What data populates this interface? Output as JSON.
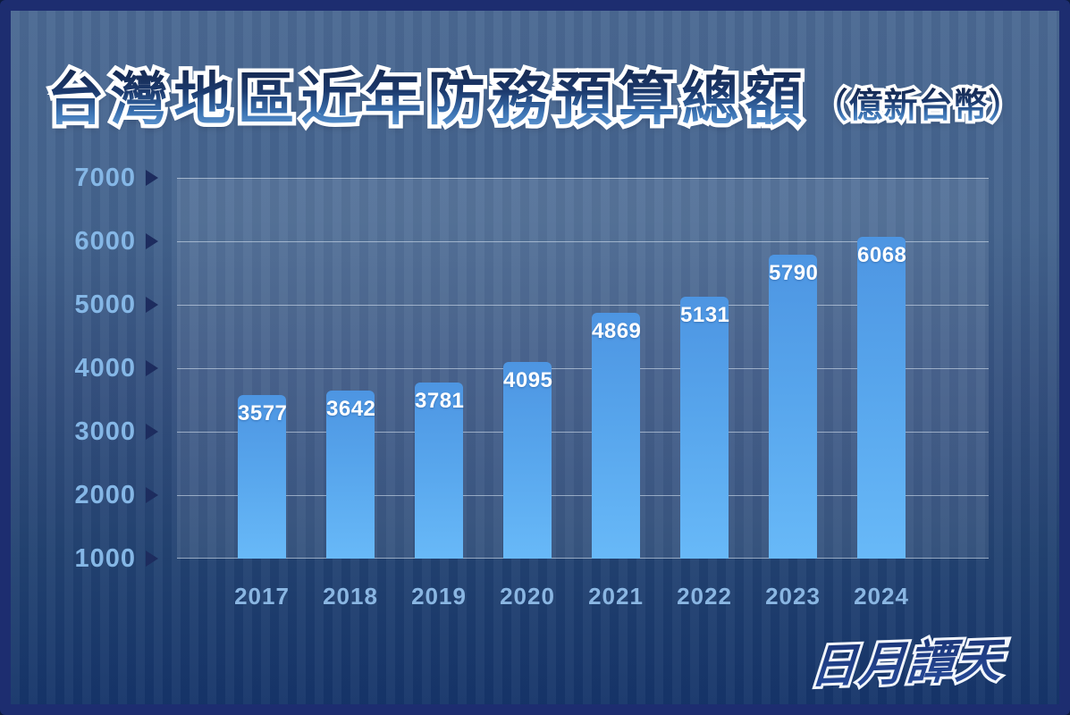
{
  "title": {
    "main": "台灣地區近年防務預算總額",
    "unit": "（億新台幣）"
  },
  "watermark": "日月譚天",
  "colors": {
    "frame": "#1d2d70",
    "background_top": "#4b6992",
    "background_bottom": "#16356a",
    "bar_top": "#4d95e2",
    "bar_bottom": "#68b9f8",
    "axis_label_blue": "#85b7e6",
    "value_label_white": "#ffffff",
    "tick_arrow_navy": "#1d2c5e",
    "watermark_blue": "#21418f"
  },
  "chart_data": {
    "type": "bar",
    "title": "台灣地區近年防務預算總額",
    "subtitle": "（億新台幣）",
    "xlabel": "",
    "ylabel": "",
    "categories": [
      "2017",
      "2018",
      "2019",
      "2020",
      "2021",
      "2022",
      "2023",
      "2024"
    ],
    "values": [
      3577,
      3642,
      3781,
      4095,
      4869,
      5131,
      5790,
      6068
    ],
    "yticks": [
      7000,
      6000,
      5000,
      4000,
      3000,
      2000,
      1000
    ],
    "ylim": [
      1000,
      7000
    ],
    "grid": "horizontal",
    "legend_position": "none",
    "bar_value_labels": "inside-top",
    "watermark": "日月譚天"
  }
}
